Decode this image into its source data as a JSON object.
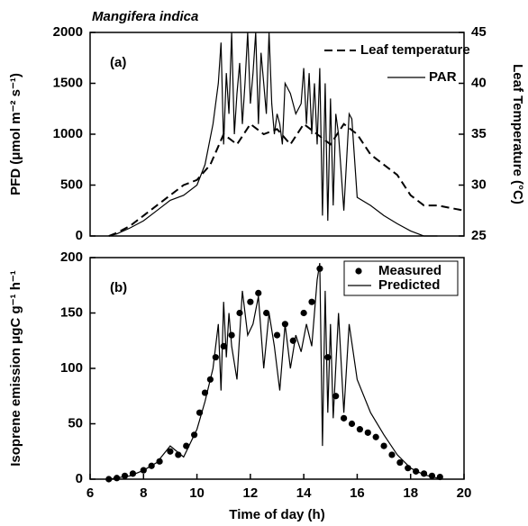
{
  "chart_data": [
    {
      "type": "line",
      "title": "Mangifera indica",
      "annotation": "(a)",
      "y_label": "PFD (μmol m⁻² s⁻¹)",
      "y2_label": "Leaf Temperature (°C)",
      "xlim": [
        6,
        20
      ],
      "ylim": [
        0,
        2000
      ],
      "yticks": [
        0,
        500,
        1000,
        1500,
        2000
      ],
      "y2lim": [
        25,
        45
      ],
      "y2ticks": [
        25,
        30,
        35,
        40,
        45
      ],
      "legend": "top-right",
      "series": [
        {
          "name": "Leaf  temperature",
          "color": "#000000",
          "style": "dashed",
          "axis": "y2",
          "x": [
            6.7,
            7,
            7.5,
            8,
            8.5,
            9,
            9.5,
            10,
            10.5,
            11,
            11.5,
            12,
            12.5,
            13,
            13.5,
            14,
            14.5,
            15,
            15.5,
            16,
            16.5,
            17,
            17.5,
            18,
            18.5,
            19,
            20
          ],
          "values": [
            25,
            25.3,
            26,
            27,
            28,
            29,
            30,
            30.5,
            32,
            35,
            34,
            36,
            35,
            35.5,
            34,
            36,
            35,
            34,
            36,
            35,
            33,
            32,
            31,
            29,
            28,
            28,
            27.5
          ]
        },
        {
          "name": "PAR",
          "color": "#000000",
          "style": "solid",
          "x": [
            6.7,
            7,
            7.5,
            8,
            8.5,
            9,
            9.5,
            10,
            10.3,
            10.6,
            10.8,
            10.9,
            11,
            11.1,
            11.2,
            11.3,
            11.4,
            11.5,
            11.6,
            11.7,
            11.8,
            11.9,
            12,
            12.1,
            12.2,
            12.3,
            12.4,
            12.5,
            12.6,
            12.7,
            12.8,
            12.9,
            13,
            13.1,
            13.2,
            13.3,
            13.5,
            13.7,
            13.9,
            14,
            14.1,
            14.2,
            14.3,
            14.4,
            14.5,
            14.6,
            14.7,
            14.8,
            14.9,
            15,
            15.1,
            15.2,
            15.3,
            15.5,
            15.7,
            15.8,
            16,
            16.5,
            17,
            17.5,
            18,
            18.5,
            19
          ],
          "values": [
            0,
            20,
            80,
            150,
            250,
            350,
            400,
            500,
            700,
            1100,
            1500,
            1900,
            900,
            1600,
            1200,
            2000,
            1000,
            1400,
            1700,
            1100,
            1500,
            2000,
            1300,
            1600,
            2000,
            1100,
            1800,
            1500,
            1200,
            2000,
            1300,
            1000,
            1200,
            1100,
            900,
            1500,
            1400,
            1200,
            1300,
            1650,
            1100,
            1600,
            1000,
            1500,
            900,
            1650,
            200,
            1500,
            150,
            1350,
            300,
            1200,
            1000,
            250,
            1200,
            1150,
            380,
            300,
            200,
            120,
            50,
            0,
            0
          ]
        }
      ]
    },
    {
      "type": "line",
      "annotation": "(b)",
      "x_label": "Time of day (h)",
      "y_label": "Isoprene emission  μgC g⁻¹ h⁻¹",
      "xlim": [
        6,
        20
      ],
      "xticks": [
        6,
        8,
        10,
        12,
        14,
        16,
        18,
        20
      ],
      "ylim": [
        0,
        200
      ],
      "yticks": [
        0,
        50,
        100,
        150,
        200
      ],
      "legend": "top-right",
      "series": [
        {
          "name": "Measured",
          "color": "#000000",
          "style": "markers",
          "x": [
            6.7,
            7,
            7.3,
            7.6,
            8,
            8.3,
            8.6,
            9,
            9.3,
            9.6,
            9.9,
            10.1,
            10.3,
            10.5,
            10.7,
            11,
            11.3,
            11.6,
            12,
            12.3,
            12.6,
            13,
            13.3,
            13.6,
            14,
            14.3,
            14.6,
            14.9,
            15.2,
            15.5,
            15.8,
            16.1,
            16.4,
            16.7,
            17,
            17.3,
            17.6,
            17.9,
            18.2,
            18.5,
            18.8,
            19.1
          ],
          "values": [
            0,
            1,
            3,
            5,
            8,
            12,
            16,
            25,
            22,
            30,
            40,
            60,
            78,
            90,
            110,
            120,
            130,
            150,
            160,
            168,
            150,
            130,
            140,
            125,
            150,
            160,
            190,
            110,
            75,
            55,
            50,
            45,
            42,
            38,
            30,
            22,
            15,
            10,
            7,
            5,
            3,
            2
          ]
        },
        {
          "name": "Predicted",
          "color": "#000000",
          "style": "solid",
          "x": [
            6.7,
            7.5,
            8,
            8.5,
            9,
            9.5,
            10,
            10.3,
            10.6,
            10.8,
            10.9,
            11,
            11.1,
            11.2,
            11.3,
            11.5,
            11.7,
            11.9,
            12.1,
            12.3,
            12.5,
            12.7,
            12.9,
            13.1,
            13.3,
            13.5,
            13.7,
            13.9,
            14.1,
            14.3,
            14.5,
            14.6,
            14.7,
            14.8,
            14.9,
            15,
            15.1,
            15.3,
            15.5,
            15.7,
            16,
            16.5,
            17,
            17.5,
            18,
            18.5,
            19
          ],
          "values": [
            0,
            3,
            8,
            15,
            30,
            20,
            45,
            70,
            100,
            140,
            80,
            160,
            110,
            150,
            120,
            90,
            170,
            130,
            140,
            165,
            100,
            150,
            120,
            80,
            140,
            100,
            130,
            115,
            140,
            120,
            180,
            195,
            30,
            170,
            60,
            140,
            55,
            150,
            60,
            140,
            90,
            60,
            40,
            22,
            10,
            4,
            1
          ]
        }
      ]
    }
  ]
}
